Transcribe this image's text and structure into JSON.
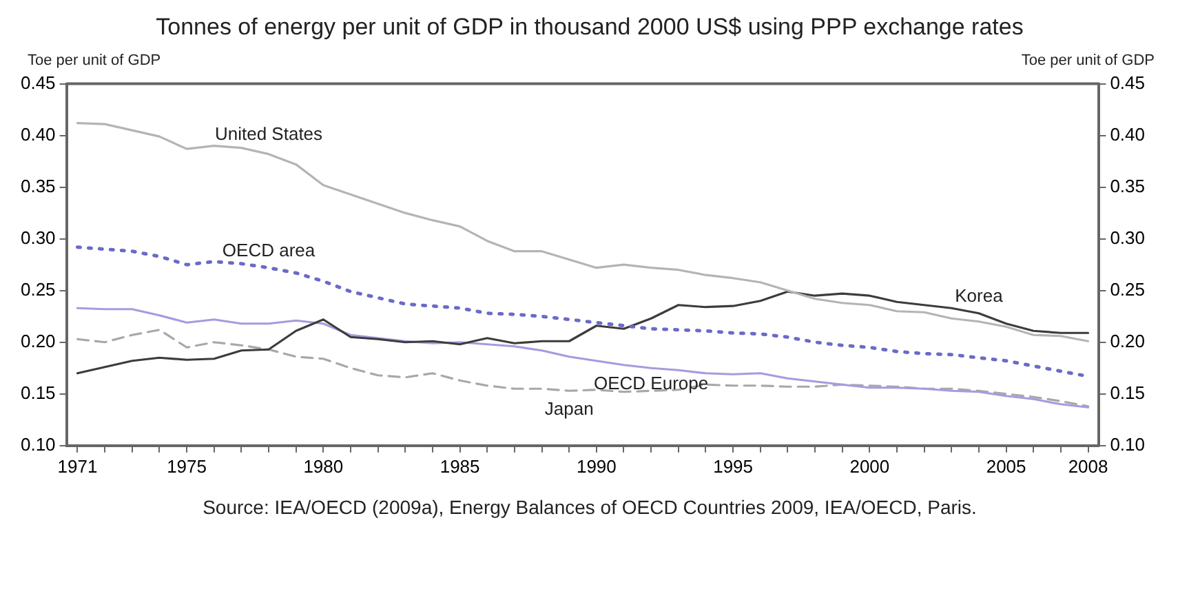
{
  "chart_data": {
    "type": "line",
    "title": "Tonnes of energy per unit of GDP in thousand 2000 US$ using PPP exchange rates",
    "ylabel": "Toe per unit of GDP",
    "y2label": "Toe per unit of GDP",
    "annotations": [
      "Source: IEA/OECD (2009a), Energy Balances of OECD Countries 2009, IEA/OECD, Paris."
    ],
    "x": [
      1971,
      1972,
      1973,
      1974,
      1975,
      1976,
      1977,
      1978,
      1979,
      1980,
      1981,
      1982,
      1983,
      1984,
      1985,
      1986,
      1987,
      1988,
      1989,
      1990,
      1991,
      1992,
      1993,
      1994,
      1995,
      1996,
      1997,
      1998,
      1999,
      2000,
      2001,
      2002,
      2003,
      2004,
      2005,
      2006,
      2007,
      2008
    ],
    "series": [
      {
        "name": "United States",
        "color": "#b4b4b4",
        "line_style": "solid",
        "values": [
          0.412,
          0.411,
          0.405,
          0.399,
          0.387,
          0.39,
          0.388,
          0.382,
          0.372,
          0.352,
          0.343,
          0.334,
          0.325,
          0.318,
          0.312,
          0.298,
          0.288,
          0.288,
          0.28,
          0.272,
          0.275,
          0.272,
          0.27,
          0.265,
          0.262,
          0.258,
          0.25,
          0.242,
          0.238,
          0.236,
          0.23,
          0.229,
          0.223,
          0.22,
          0.215,
          0.207,
          0.206,
          0.201
        ]
      },
      {
        "name": "OECD area",
        "color": "#6a6ac8",
        "line_style": "dotted",
        "values": [
          0.292,
          0.29,
          0.288,
          0.283,
          0.275,
          0.278,
          0.276,
          0.272,
          0.267,
          0.259,
          0.249,
          0.243,
          0.237,
          0.235,
          0.233,
          0.228,
          0.227,
          0.225,
          0.222,
          0.219,
          0.216,
          0.213,
          0.212,
          0.211,
          0.209,
          0.208,
          0.205,
          0.2,
          0.197,
          0.195,
          0.191,
          0.189,
          0.188,
          0.185,
          0.182,
          0.177,
          0.172,
          0.167
        ]
      },
      {
        "name": "Korea",
        "color": "#3c3c3c",
        "line_style": "solid",
        "values": [
          0.17,
          0.176,
          0.182,
          0.185,
          0.183,
          0.184,
          0.192,
          0.193,
          0.211,
          0.222,
          0.205,
          0.203,
          0.2,
          0.201,
          0.198,
          0.204,
          0.199,
          0.201,
          0.201,
          0.216,
          0.213,
          0.223,
          0.236,
          0.234,
          0.235,
          0.24,
          0.249,
          0.245,
          0.247,
          0.245,
          0.239,
          0.236,
          0.233,
          0.228,
          0.218,
          0.211,
          0.209,
          0.209
        ]
      },
      {
        "name": "OECD Europe",
        "color": "#a49ce0",
        "line_style": "solid",
        "values": [
          0.233,
          0.232,
          0.232,
          0.226,
          0.219,
          0.222,
          0.218,
          0.218,
          0.221,
          0.218,
          0.207,
          0.204,
          0.201,
          0.199,
          0.2,
          0.198,
          0.196,
          0.192,
          0.186,
          0.182,
          0.178,
          0.175,
          0.173,
          0.17,
          0.169,
          0.17,
          0.165,
          0.162,
          0.159,
          0.156,
          0.156,
          0.155,
          0.153,
          0.152,
          0.148,
          0.145,
          0.14,
          0.137
        ]
      },
      {
        "name": "Japan",
        "color": "#a8a8a8",
        "line_style": "dashed",
        "values": [
          0.203,
          0.2,
          0.207,
          0.212,
          0.195,
          0.2,
          0.197,
          0.193,
          0.186,
          0.184,
          0.175,
          0.168,
          0.166,
          0.17,
          0.163,
          0.158,
          0.155,
          0.155,
          0.153,
          0.154,
          0.152,
          0.153,
          0.154,
          0.159,
          0.158,
          0.158,
          0.157,
          0.157,
          0.159,
          0.158,
          0.157,
          0.155,
          0.155,
          0.153,
          0.15,
          0.147,
          0.143,
          0.138
        ]
      }
    ],
    "xlim": [
      1970.6,
      2008.4
    ],
    "xticks": [
      1971,
      {
        "value": 1972,
        "label": null
      },
      {
        "value": 1973,
        "label": null
      },
      {
        "value": 1974,
        "label": null
      },
      1975,
      {
        "value": 1976,
        "label": null
      },
      {
        "value": 1977,
        "label": null
      },
      {
        "value": 1978,
        "label": null
      },
      {
        "value": 1979,
        "label": null
      },
      1980,
      {
        "value": 1981,
        "label": null
      },
      {
        "value": 1982,
        "label": null
      },
      {
        "value": 1983,
        "label": null
      },
      {
        "value": 1984,
        "label": null
      },
      1985,
      {
        "value": 1986,
        "label": null
      },
      {
        "value": 1987,
        "label": null
      },
      {
        "value": 1988,
        "label": null
      },
      {
        "value": 1989,
        "label": null
      },
      1990,
      {
        "value": 1991,
        "label": null
      },
      {
        "value": 1992,
        "label": null
      },
      {
        "value": 1993,
        "label": null
      },
      {
        "value": 1994,
        "label": null
      },
      1995,
      {
        "value": 1996,
        "label": null
      },
      {
        "value": 1997,
        "label": null
      },
      {
        "value": 1998,
        "label": null
      },
      {
        "value": 1999,
        "label": null
      },
      2000,
      {
        "value": 2001,
        "label": null
      },
      {
        "value": 2002,
        "label": null
      },
      {
        "value": 2003,
        "label": null
      },
      {
        "value": 2004,
        "label": null
      },
      2005,
      {
        "value": 2006,
        "label": null
      },
      {
        "value": 2007,
        "label": null
      },
      2008
    ],
    "ylim": [
      0.1,
      0.45
    ],
    "yticks": [
      {
        "value": 0.1,
        "label": "0.10"
      },
      {
        "value": 0.15,
        "label": "0.15"
      },
      {
        "value": 0.2,
        "label": "0.20"
      },
      {
        "value": 0.25,
        "label": "0.25"
      },
      {
        "value": 0.3,
        "label": "0.30"
      },
      {
        "value": 0.35,
        "label": "0.35"
      },
      {
        "value": 0.4,
        "label": "0.40"
      },
      {
        "value": 0.45,
        "label": "0.45"
      }
    ],
    "y2lim": [
      0.1,
      0.45
    ],
    "y2ticks": [
      {
        "value": 0.1,
        "label": "0.10"
      },
      {
        "value": 0.15,
        "label": "0.15"
      },
      {
        "value": 0.2,
        "label": "0.20"
      },
      {
        "value": 0.25,
        "label": "0.25"
      },
      {
        "value": 0.3,
        "label": "0.30"
      },
      {
        "value": 0.35,
        "label": "0.35"
      },
      {
        "value": 0.4,
        "label": "0.40"
      },
      {
        "value": 0.45,
        "label": "0.45"
      }
    ],
    "grid": false,
    "legend": false,
    "marker": "none"
  }
}
